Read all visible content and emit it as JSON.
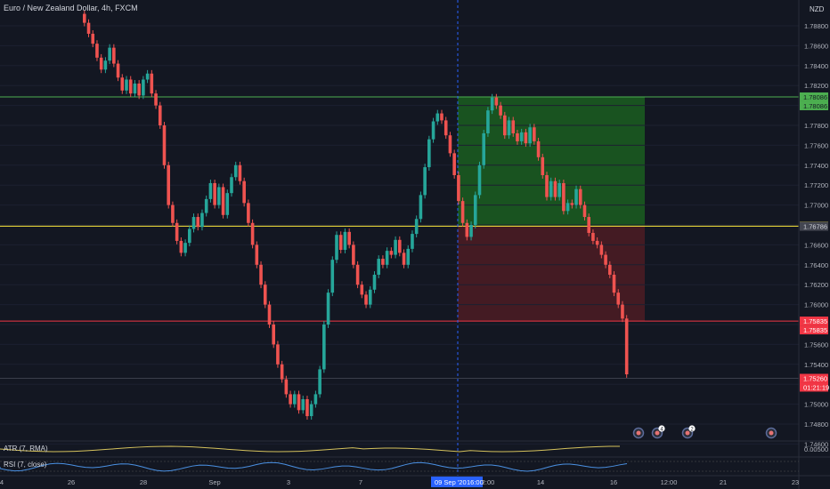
{
  "header": {
    "title": "Euro / New Zealand Dollar, 4h, FXCM",
    "currency": "NZD"
  },
  "price_scale": {
    "ticks": [
      "1.78800",
      "1.78600",
      "1.78400",
      "1.78200",
      "1.77800",
      "1.77600",
      "1.77400",
      "1.77200",
      "1.77000",
      "1.76600",
      "1.76400",
      "1.76200",
      "1.76000",
      "1.75600",
      "1.75400",
      "1.75000",
      "1.74800",
      "1.74600"
    ],
    "labels": [
      {
        "value": 1.78086,
        "text": "1.78086",
        "color": "#4caf50",
        "text_color": "#131722"
      },
      {
        "value": 1.78086,
        "text": "1.78086",
        "color": "#4caf50",
        "text_color": "#131722",
        "second": true
      },
      {
        "value": 1.76788,
        "text": "1.76788",
        "color": "#ffeb3b",
        "text_color": "#131722"
      },
      {
        "value": 1.76786,
        "text": "1.76786",
        "color": "#434651",
        "text_color": "#d1d4dc"
      },
      {
        "value": 1.75835,
        "text": "1.75835",
        "color": "#f23645",
        "text_color": "#ffffff"
      },
      {
        "value": 1.75835,
        "text": "1.75835",
        "color": "#f23645",
        "text_color": "#ffffff",
        "second": true
      },
      {
        "value": 1.7526,
        "text": "1.75260",
        "color": "#f23645",
        "text_color": "#ffffff"
      },
      {
        "value": 1.7526,
        "text": "01:21:19",
        "color": "#f23645",
        "text_color": "#ffffff",
        "second": true
      }
    ]
  },
  "indicators": {
    "atr": {
      "label": "ATR (7, RMA)",
      "value_tick": "0.00500"
    },
    "rsi": {
      "label": "RSI (7, close)"
    }
  },
  "time_axis": {
    "labels": [
      "4",
      "26",
      "28",
      "Sep",
      "3",
      "7",
      "2:00",
      "14",
      "16",
      "12:00",
      "21",
      "23"
    ],
    "cursor_date": "09 Sep '20",
    "cursor_time": "16:00"
  },
  "events": [
    {
      "kind": "event-icon",
      "count": ""
    },
    {
      "kind": "event-icon",
      "count": "4"
    },
    {
      "kind": "event-icon",
      "count": "2"
    },
    {
      "kind": "event-icon",
      "count": ""
    }
  ],
  "colors": {
    "background": "#131722",
    "bull": "#26a69a",
    "bear": "#ef5350",
    "profit_zone": "#1b5e20",
    "loss_zone": "#4a1c24",
    "target_line": "#4caf50",
    "entry_line": "#ffeb3b",
    "stop_line": "#f23645",
    "atr_line": "#d4c15c",
    "rsi_line": "#4a90e2"
  }
}
